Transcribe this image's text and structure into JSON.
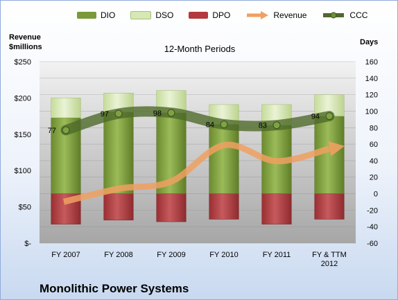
{
  "legend": {
    "dio": "DIO",
    "dso": "DSO",
    "dpo": "DPO",
    "revenue": "Revenue",
    "ccc": "CCC"
  },
  "left_axis_title": "Revenue\n$millions",
  "right_axis_title": "Days",
  "plot_title": "12-Month Periods",
  "company": "Monolithic Power Systems",
  "colors": {
    "dio": "#7a9a3a",
    "dso": "#d6e8b4",
    "dpo": "#b23a3e",
    "revenue": "#f0a060",
    "ccc": "#4f6a2a"
  },
  "chart_data": {
    "type": "bar",
    "categories": [
      "FY 2007",
      "FY 2008",
      "FY 2009",
      "FY 2010",
      "FY 2011",
      "FY & TTM\n2012"
    ],
    "series": [
      {
        "name": "DIO",
        "axis": "right",
        "values": [
          92,
          99,
          98,
          84,
          83,
          94
        ]
      },
      {
        "name": "DSO",
        "axis": "right",
        "values": [
          24,
          23,
          27,
          24,
          25,
          26
        ]
      },
      {
        "name": "DPO",
        "axis": "right",
        "values": [
          -37,
          -32,
          -34,
          -31,
          -37,
          -31
        ]
      },
      {
        "name": "Revenue",
        "axis": "left",
        "type": "line",
        "values": [
          57,
          75,
          85,
          135,
          113,
          130
        ]
      },
      {
        "name": "CCC",
        "axis": "right",
        "type": "line",
        "values": [
          77,
          97,
          98,
          84,
          83,
          94
        ]
      }
    ],
    "data_labels": [
      "77",
      "97",
      "98",
      "84",
      "83",
      "94"
    ],
    "left_axis": {
      "ticks": [
        "$-",
        "$50",
        "$100",
        "$150",
        "$200",
        "$250"
      ],
      "ylim": [
        0,
        250
      ]
    },
    "right_axis": {
      "ticks": [
        "-60",
        "-40",
        "-20",
        "0",
        "20",
        "40",
        "60",
        "80",
        "100",
        "120",
        "140",
        "160"
      ],
      "ylim": [
        -60,
        160
      ]
    },
    "grid": true
  }
}
